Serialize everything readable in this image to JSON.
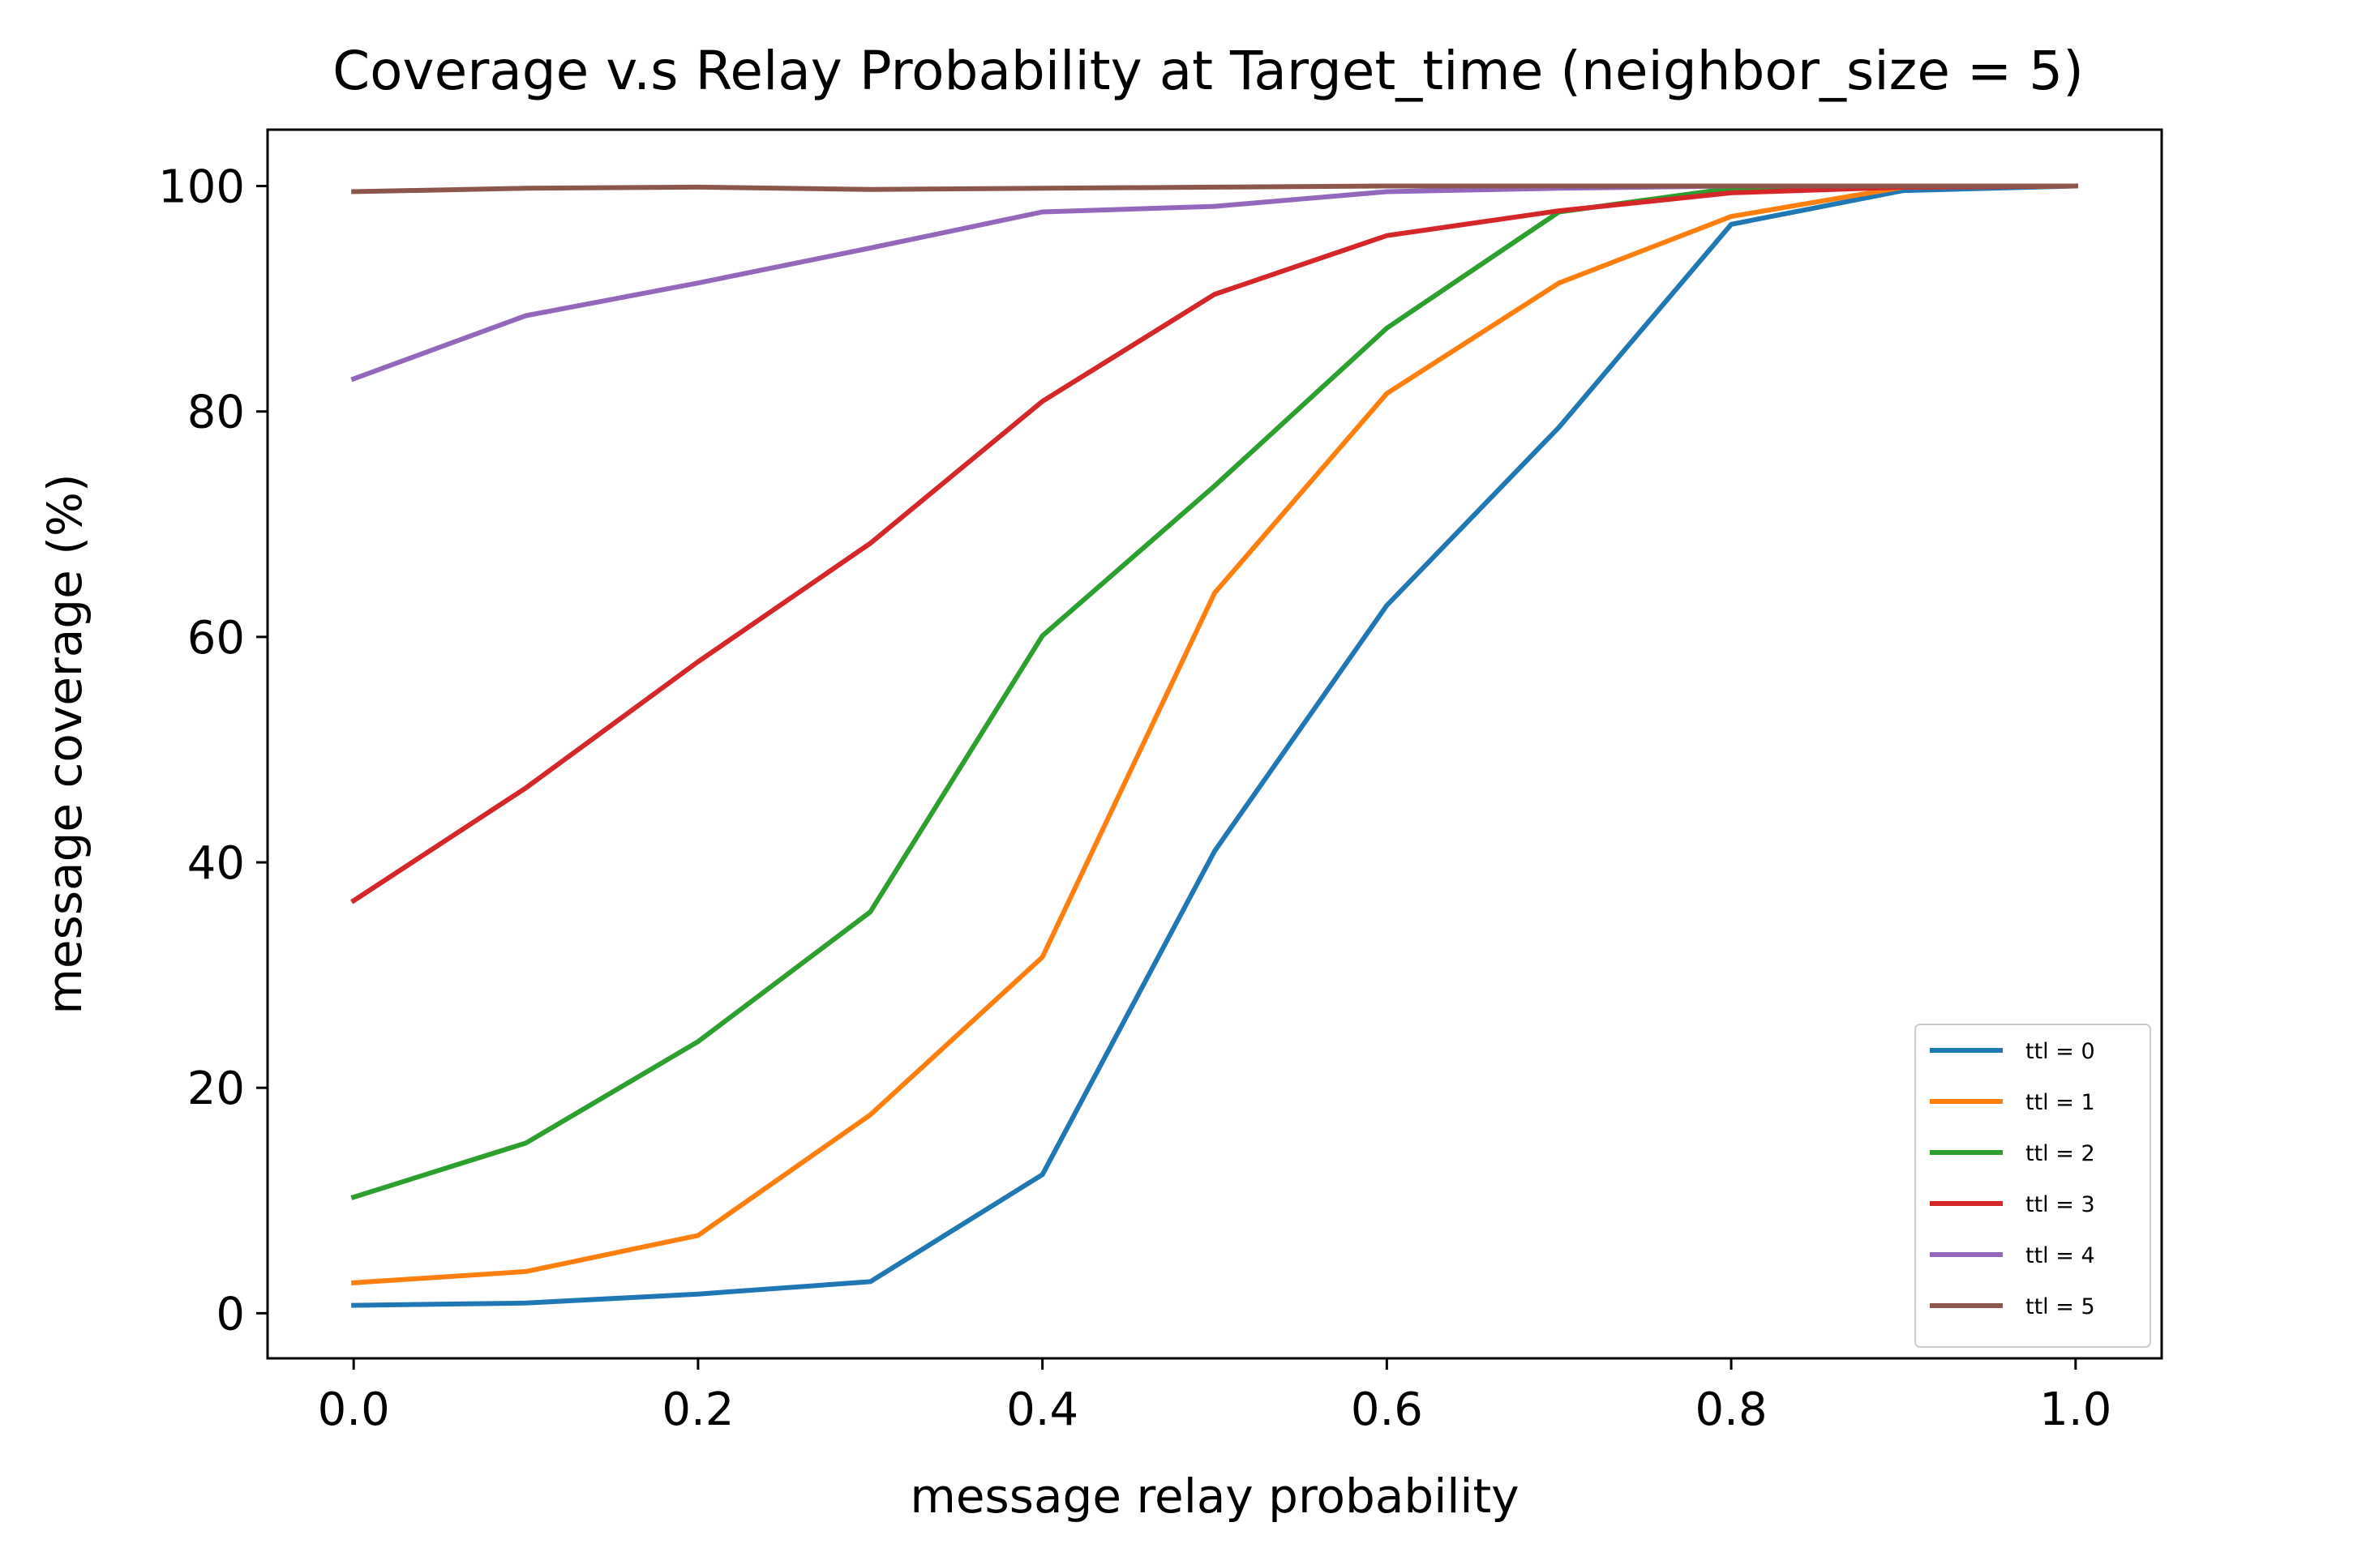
{
  "chart_data": {
    "type": "line",
    "title": "Coverage v.s Relay Probability at Target_time (neighbor_size = 5)",
    "xlabel": "message relay probability",
    "ylabel": "message coverage (%)",
    "xlim": [
      -0.05,
      1.05
    ],
    "ylim": [
      -4,
      105
    ],
    "xticks": [
      0.0,
      0.2,
      0.4,
      0.6,
      0.8,
      1.0
    ],
    "xtick_labels": [
      "0.0",
      "0.2",
      "0.4",
      "0.6",
      "0.8",
      "1.0"
    ],
    "yticks": [
      0,
      20,
      40,
      60,
      80,
      100
    ],
    "ytick_labels": [
      "0",
      "20",
      "40",
      "60",
      "80",
      "100"
    ],
    "grid": false,
    "legend_position": "lower-right",
    "x": [
      0.0,
      0.1,
      0.2,
      0.3,
      0.4,
      0.5,
      0.6,
      0.7,
      0.8,
      0.9,
      1.0
    ],
    "series": [
      {
        "name": "ttl = 0",
        "color": "#1f77b4",
        "values": [
          0.7,
          0.9,
          1.7,
          2.8,
          12.3,
          41.0,
          62.8,
          78.6,
          96.6,
          99.6,
          100.0
        ]
      },
      {
        "name": "ttl = 1",
        "color": "#ff7f0e",
        "values": [
          2.7,
          3.7,
          6.9,
          17.6,
          31.6,
          63.9,
          81.6,
          91.4,
          97.3,
          99.9,
          100.0
        ]
      },
      {
        "name": "ttl = 2",
        "color": "#2ca02c",
        "values": [
          10.3,
          15.1,
          24.1,
          35.6,
          60.1,
          73.4,
          87.4,
          97.7,
          99.8,
          100.0,
          100.0
        ]
      },
      {
        "name": "ttl = 3",
        "color": "#d62728",
        "values": [
          36.6,
          46.6,
          57.8,
          68.3,
          80.9,
          90.4,
          95.6,
          97.8,
          99.4,
          99.9,
          100.0
        ]
      },
      {
        "name": "ttl = 4",
        "color": "#9467bd",
        "values": [
          82.9,
          88.5,
          91.4,
          94.5,
          97.7,
          98.2,
          99.5,
          99.8,
          100.0,
          100.0,
          100.0
        ]
      },
      {
        "name": "ttl = 5",
        "color": "#8c564b",
        "values": [
          99.5,
          99.8,
          99.9,
          99.7,
          99.8,
          99.9,
          100.0,
          100.0,
          100.0,
          100.0,
          100.0
        ]
      }
    ]
  }
}
